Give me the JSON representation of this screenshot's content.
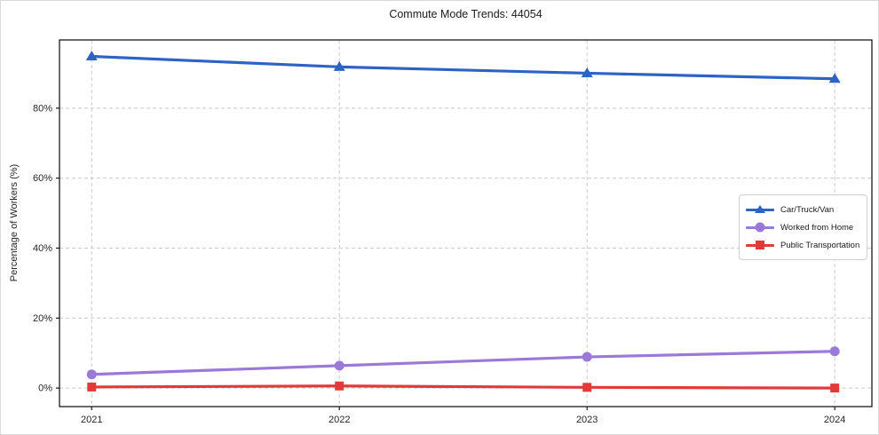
{
  "chart_data": {
    "type": "line",
    "title": "Commute Mode Trends: 44054",
    "xlabel": "",
    "ylabel": "Percentage of Workers (%)",
    "x": [
      2021,
      2022,
      2023,
      2024
    ],
    "x_tick_labels": [
      "2021",
      "2022",
      "2023",
      "2024"
    ],
    "y_ticks": [
      0,
      20,
      40,
      60,
      80
    ],
    "y_tick_labels": [
      "0%",
      "20%",
      "40%",
      "60%",
      "80%"
    ],
    "xlim": [
      2020.87,
      2024.15
    ],
    "ylim": [
      -5.3,
      99.5
    ],
    "grid": true,
    "grid_style": "dashed",
    "legend_position": "center right",
    "series": [
      {
        "name": "Car/Truck/Van",
        "marker": "triangle",
        "color": "#2e63c6",
        "values": [
          94.8,
          91.8,
          90.0,
          88.4
        ]
      },
      {
        "name": "Worked from Home",
        "marker": "circle",
        "color": "#9a79d8",
        "values": [
          3.9,
          6.4,
          8.9,
          10.5
        ]
      },
      {
        "name": "Public Transportation",
        "marker": "square",
        "color": "#e03b38",
        "values": [
          0.3,
          0.6,
          0.2,
          0.0
        ]
      }
    ],
    "colors": {
      "grid": "#c9c9c9",
      "spine": "#1a1a1a",
      "tick_label": "#262626",
      "background": "#ffffff"
    }
  }
}
